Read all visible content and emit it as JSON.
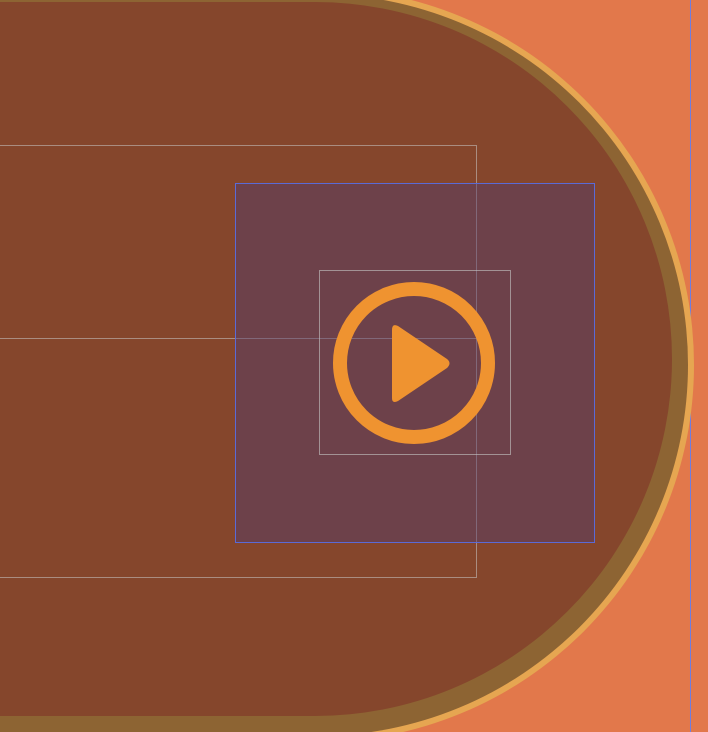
{
  "button": {
    "icon": "play-icon",
    "accent_color": "#ef9330",
    "body_color": "#85462c",
    "rim_color": "#e6a651"
  },
  "canvas": {
    "background_color": "#e2784b",
    "guide_color": "#6f7de0"
  }
}
